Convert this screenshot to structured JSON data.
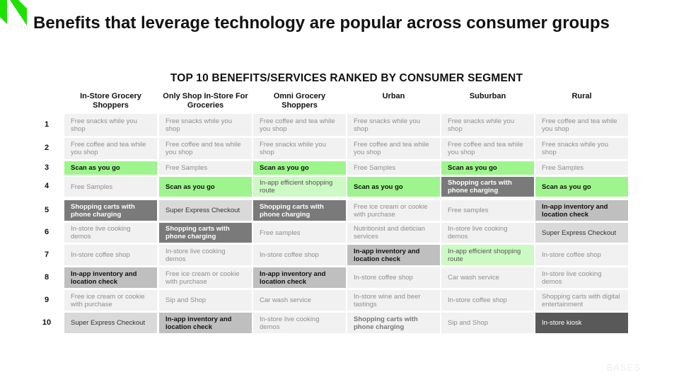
{
  "title": "Benefits that leverage technology are popular across consumer groups",
  "subtitle": "TOP 10 BENEFITS/SERVICES RANKED BY CONSUMER SEGMENT",
  "brand": "BASES",
  "colors": {
    "logo": "#1ee100",
    "bright_green": "#9ef58d",
    "light_green": "#cdf9c4",
    "dark_grey": "#7a7a7a",
    "darkest_grey": "#595959",
    "mid_grey": "#bfbfbf",
    "light_grey": "#d9d9d9",
    "cell_bg": "#f1f1f1"
  },
  "columns": [
    "In-Store Grocery Shoppers",
    "Only Shop In-Store For Groceries",
    "Omni Grocery Shoppers",
    "Urban",
    "Suburban",
    "Rural"
  ],
  "ranks": [
    "1",
    "2",
    "3",
    "4",
    "5",
    "6",
    "7",
    "8",
    "9",
    "10"
  ],
  "rows": [
    [
      {
        "text": "Free snacks while you shop",
        "style": "w"
      },
      {
        "text": "Free snacks while you shop",
        "style": "w"
      },
      {
        "text": "Free coffee and tea while you shop",
        "style": "w"
      },
      {
        "text": "Free snacks while you shop",
        "style": "w"
      },
      {
        "text": "Free snacks while you shop",
        "style": "w"
      },
      {
        "text": "Free coffee and tea while you shop",
        "style": "w"
      }
    ],
    [
      {
        "text": "Free coffee and tea while you shop",
        "style": "w"
      },
      {
        "text": "Free coffee and tea while you shop",
        "style": "w"
      },
      {
        "text": "Free snacks while you shop",
        "style": "w"
      },
      {
        "text": "Free coffee and tea while you shop",
        "style": "w"
      },
      {
        "text": "Free coffee and tea while you shop",
        "style": "w"
      },
      {
        "text": "Free snacks while you shop",
        "style": "w"
      }
    ],
    [
      {
        "text": "Scan as you go",
        "style": "gb"
      },
      {
        "text": "Free Samples",
        "style": "w"
      },
      {
        "text": "Scan as you go",
        "style": "gb"
      },
      {
        "text": "Free Samples",
        "style": "w"
      },
      {
        "text": "Scan as you go",
        "style": "gb"
      },
      {
        "text": "Free Samples",
        "style": "w"
      }
    ],
    [
      {
        "text": "Free Samples",
        "style": "w"
      },
      {
        "text": "Scan as you go",
        "style": "gb"
      },
      {
        "text": "In-app efficient shopping route",
        "style": "gl"
      },
      {
        "text": "Scan as you go",
        "style": "gb"
      },
      {
        "text": "Shopping carts with phone charging",
        "style": "dg"
      },
      {
        "text": "Scan as you go",
        "style": "gb"
      }
    ],
    [
      {
        "text": "Shopping carts with phone charging",
        "style": "dg"
      },
      {
        "text": "Super Express Checkout",
        "style": "lg"
      },
      {
        "text": "Shopping carts with phone charging",
        "style": "dg"
      },
      {
        "text": "Free ice cream or cookie with purchase",
        "style": "w"
      },
      {
        "text": "Free samples",
        "style": "w"
      },
      {
        "text": "In-app inventory and location check",
        "style": "mg"
      }
    ],
    [
      {
        "text": "In-store live cooking demos",
        "style": "w"
      },
      {
        "text": "Shopping carts with phone charging",
        "style": "dg"
      },
      {
        "text": "Free samples",
        "style": "w"
      },
      {
        "text": "Nutritionist and dietician services",
        "style": "w"
      },
      {
        "text": "In-store live cooking demos",
        "style": "w"
      },
      {
        "text": "Super Express Checkout",
        "style": "lg"
      }
    ],
    [
      {
        "text": "In-store coffee shop",
        "style": "w"
      },
      {
        "text": "In-store live cooking demos",
        "style": "w"
      },
      {
        "text": "In-store coffee shop",
        "style": "w"
      },
      {
        "text": "In-app inventory and location check",
        "style": "mg"
      },
      {
        "text": "In-app efficient shopping route",
        "style": "gl"
      },
      {
        "text": "In-store coffee shop",
        "style": "w"
      }
    ],
    [
      {
        "text": "In-app inventory and location check",
        "style": "mg"
      },
      {
        "text": "Free ice cream or cookie with purchase",
        "style": "w"
      },
      {
        "text": "In-app inventory and location check",
        "style": "mg"
      },
      {
        "text": "In-store coffee shop",
        "style": "w"
      },
      {
        "text": "Car wash service",
        "style": "w"
      },
      {
        "text": "In-store live cooking demos",
        "style": "w"
      }
    ],
    [
      {
        "text": "Free ice cream or cookie with purchase",
        "style": "w"
      },
      {
        "text": "Sip and Shop",
        "style": "w"
      },
      {
        "text": "Car wash service",
        "style": "w"
      },
      {
        "text": "In-store wine and beer tastings",
        "style": "w"
      },
      {
        "text": "In-store coffee shop",
        "style": "w"
      },
      {
        "text": "Shopping carts with digital entertainment",
        "style": "w"
      }
    ],
    [
      {
        "text": "Super Express Checkout",
        "style": "lg"
      },
      {
        "text": "In-app inventory and location check",
        "style": "mg"
      },
      {
        "text": "In-store live cooking demos",
        "style": "w"
      },
      {
        "text": "Shopping carts with phone charging",
        "style": "bold-grey"
      },
      {
        "text": "Sip and Shop",
        "style": "w"
      },
      {
        "text": "In-store kiosk",
        "style": "xg"
      }
    ]
  ]
}
